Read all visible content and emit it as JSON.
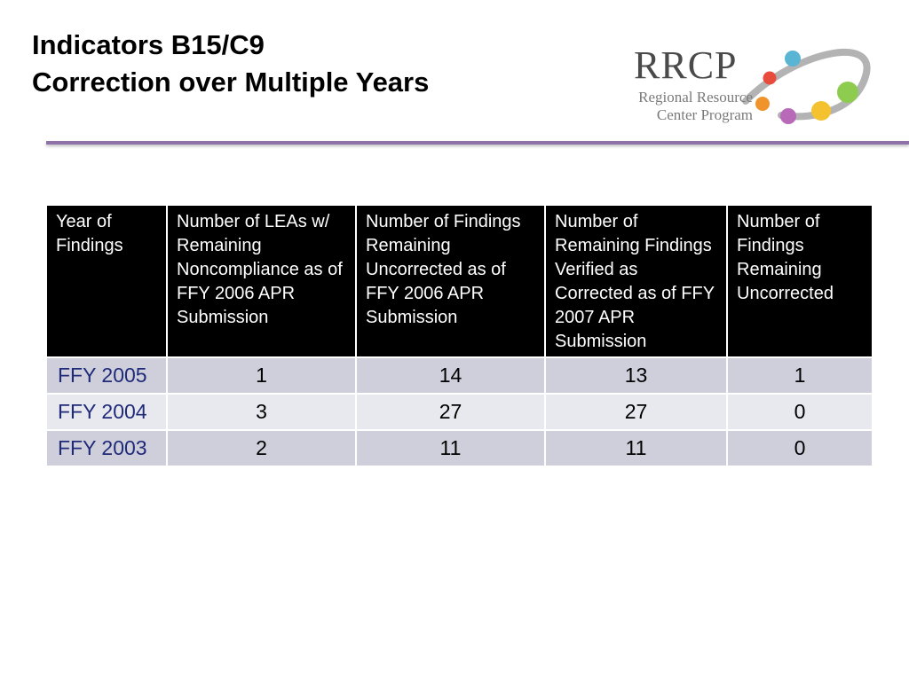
{
  "title": {
    "line1": "Indicators B15/C9",
    "line2": "Correction over Multiple Years"
  },
  "logo": {
    "wordmark": "RRCP",
    "subtitle_line1": "Regional Resource",
    "subtitle_line2": "Center Program",
    "dot_colors": [
      "#5ab4d4",
      "#e84c3d",
      "#f0932b",
      "#b86ab8",
      "#f4c22e",
      "#8dcc4e"
    ],
    "ring_color": "#9a9a9a"
  },
  "accent_color": "#8e72a8",
  "table": {
    "headers": [
      "Year of Findings",
      "Number of LEAs w/ Remaining Noncompliance as of FFY 2006 APR Submission",
      "Number of Findings Remaining Uncorrected as of FFY 2006 APR Submission",
      "Number of Remaining Findings Verified as Corrected as of FFY 2007 APR Submission",
      "Number of Findings Remaining Uncorrected"
    ],
    "rows": [
      [
        "FFY 2005",
        "1",
        "14",
        "13",
        "1"
      ],
      [
        "FFY 2004",
        "3",
        "27",
        "27",
        "0"
      ],
      [
        "FFY 2003",
        "2",
        "11",
        "11",
        "0"
      ]
    ]
  }
}
